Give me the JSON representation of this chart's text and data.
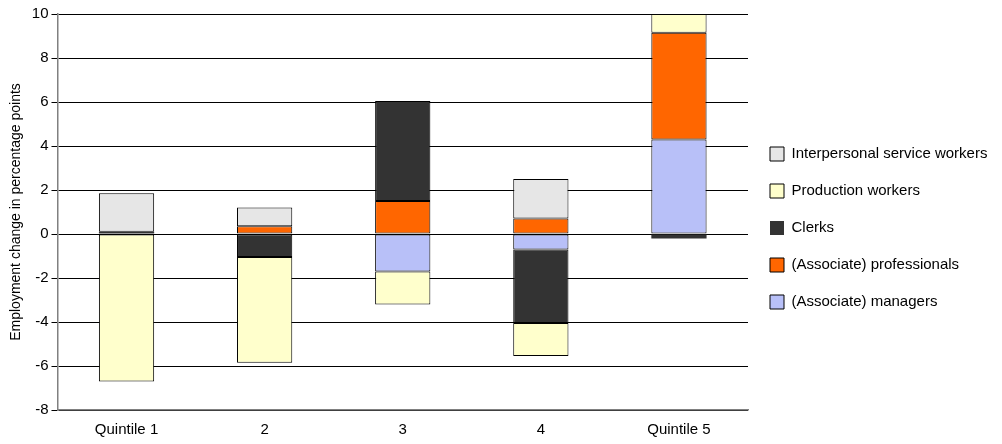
{
  "chart_data": {
    "type": "bar",
    "stacked": true,
    "categories": [
      "Quintile 1",
      "2",
      "3",
      "4",
      "Quintile 5"
    ],
    "ylabel": "Employment change in percentage points",
    "ylim": [
      -8,
      10
    ],
    "yticks": [
      -8,
      -6,
      -4,
      -2,
      0,
      2,
      4,
      6,
      8,
      10
    ],
    "grid": "y",
    "legend": "right",
    "series": [
      {
        "name": "(Associate) managers",
        "color": "#b8c0f8",
        "values": [
          null,
          null,
          -1.7,
          -0.7,
          4.3
        ]
      },
      {
        "name": "(Associate) professionals",
        "color": "#ff6600",
        "values": [
          null,
          0.35,
          1.5,
          0.7,
          4.85
        ]
      },
      {
        "name": "Clerks",
        "color": "#333333",
        "values": [
          0.1,
          -1.05,
          4.55,
          -3.35,
          -0.2
        ]
      },
      {
        "name": "Production workers",
        "color": "#ffffcc",
        "values": [
          -6.7,
          -4.8,
          -1.5,
          -1.5,
          0.85
        ]
      },
      {
        "name": "Interpersonal service workers",
        "color": "#e6e6e6",
        "values": [
          1.75,
          0.85,
          null,
          1.8,
          null
        ]
      }
    ]
  }
}
